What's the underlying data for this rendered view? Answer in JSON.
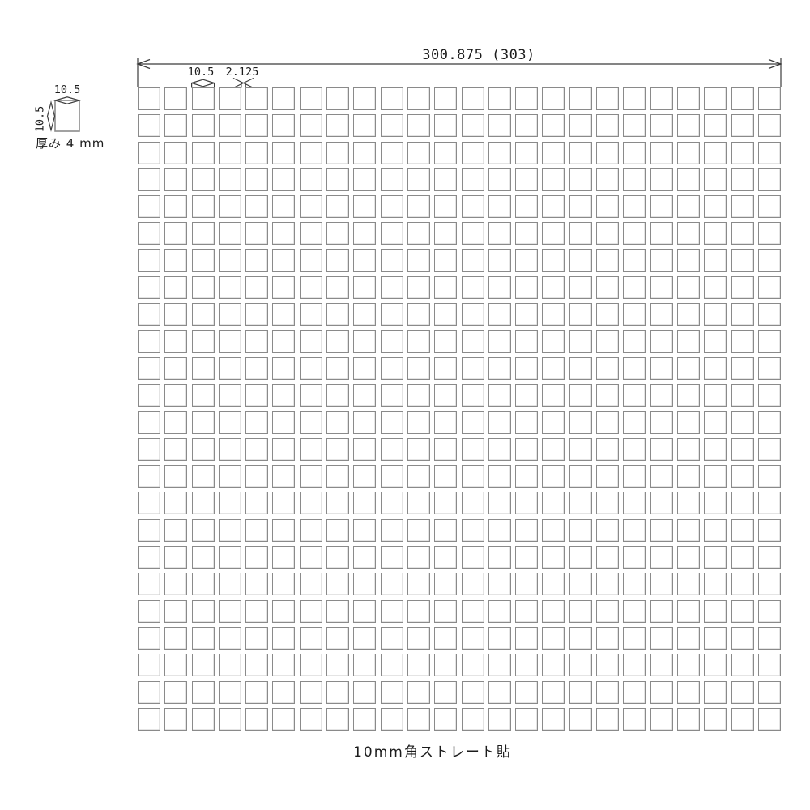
{
  "drawing": {
    "caption": "10mm角ストレート貼",
    "dimensions": {
      "overall_width": "300.875 (303)",
      "tile_size": "10.5",
      "joint_width": "2.125"
    },
    "tile_detail": {
      "width_label": "10.5",
      "height_label": "10.5",
      "thickness_label": "厚み 4 mm"
    },
    "grid": {
      "columns": 24,
      "rows": 24
    },
    "colors": {
      "background": "#ffffff",
      "dimension_line": "#3b3b3b",
      "tile_border": "#8a8a8a",
      "text": "#1c1c1c"
    }
  }
}
